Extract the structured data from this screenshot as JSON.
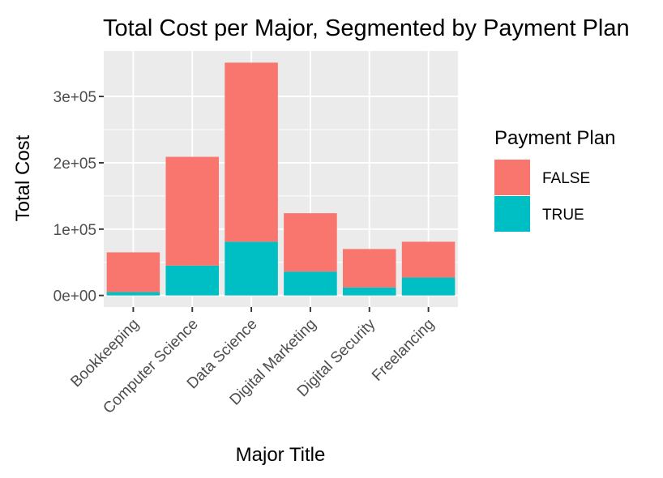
{
  "chart_data": {
    "type": "bar",
    "stacked": true,
    "title": "Total Cost per Major, Segmented by Payment Plan",
    "xlabel": "Major Title",
    "ylabel": "Total Cost",
    "categories": [
      "Bookkeeping",
      "Computer Science",
      "Data Science",
      "Digital Marketing",
      "Digital Security",
      "Freelancing"
    ],
    "series": [
      {
        "name": "TRUE",
        "color": "#00BFC4",
        "values": [
          5000,
          45000,
          81000,
          36000,
          12000,
          27000
        ]
      },
      {
        "name": "FALSE",
        "color": "#F8766D",
        "values": [
          60000,
          164000,
          270000,
          88000,
          58000,
          54000
        ]
      }
    ],
    "totals": [
      65000,
      209000,
      351000,
      124000,
      70000,
      81000
    ],
    "ylim": [
      -17500,
      368500
    ],
    "yticks": [
      0,
      100000,
      200000,
      300000
    ],
    "ytick_labels": [
      "0e+00",
      "1e+05",
      "2e+05",
      "3e+05"
    ],
    "grid": true,
    "panel_background": "#EBEBEB",
    "legend": {
      "title": "Payment Plan",
      "position": "right",
      "entries": [
        {
          "label": "FALSE",
          "color": "#F8766D"
        },
        {
          "label": "TRUE",
          "color": "#00BFC4"
        }
      ]
    }
  }
}
